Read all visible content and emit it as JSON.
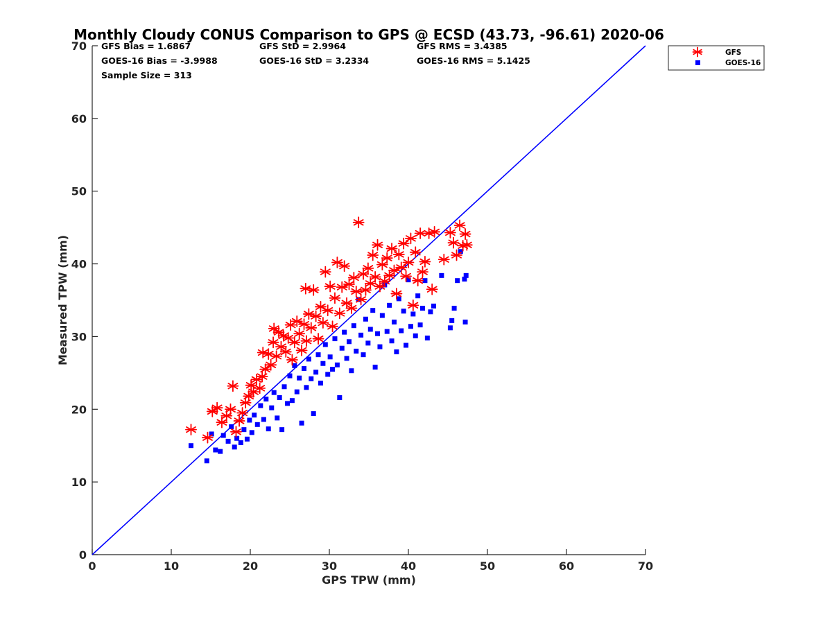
{
  "chart_data": {
    "type": "scatter",
    "title": "Monthly Cloudy CONUS Comparison to GPS @ ECSD (43.73, -96.61) 2020-06",
    "xlabel": "GPS TPW (mm)",
    "ylabel": "Measured TPW (mm)",
    "xlim": [
      0,
      70
    ],
    "ylim": [
      0,
      70
    ],
    "xticks": [
      "0",
      "10",
      "20",
      "30",
      "40",
      "50",
      "60",
      "70"
    ],
    "yticks": [
      "0",
      "10",
      "20",
      "30",
      "40",
      "50",
      "60",
      "70"
    ],
    "legend_position": "top-right-outside",
    "stats": [
      [
        "GFS Bias = 1.6867",
        "GFS StD = 2.9964",
        "GFS RMS = 3.4385"
      ],
      [
        "GOES-16 Bias = -3.9988",
        "GOES-16 StD = 3.2334",
        "GOES-16 RMS = 5.1425"
      ],
      [
        "Sample Size = 313"
      ]
    ],
    "reference_line": {
      "name": "1:1 line",
      "x": [
        0,
        70
      ],
      "y": [
        0,
        70
      ],
      "color": "#0000ff"
    },
    "series": [
      {
        "name": "GFS",
        "marker": "asterisk",
        "color": "#ff0000",
        "points": [
          [
            12.5,
            17.2
          ],
          [
            14.6,
            16.1
          ],
          [
            15.2,
            19.7
          ],
          [
            15.8,
            20.2
          ],
          [
            16.4,
            18.2
          ],
          [
            17.0,
            19.1
          ],
          [
            17.5,
            20.0
          ],
          [
            17.8,
            23.2
          ],
          [
            18.2,
            16.9
          ],
          [
            18.6,
            18.4
          ],
          [
            19.0,
            19.5
          ],
          [
            19.4,
            20.9
          ],
          [
            19.8,
            21.8
          ],
          [
            20.1,
            23.3
          ],
          [
            20.4,
            22.4
          ],
          [
            20.8,
            24.1
          ],
          [
            21.2,
            22.9
          ],
          [
            21.5,
            24.5
          ],
          [
            21.6,
            27.8
          ],
          [
            21.9,
            25.5
          ],
          [
            22.3,
            27.6
          ],
          [
            22.6,
            26.1
          ],
          [
            22.9,
            29.2
          ],
          [
            23.0,
            31.1
          ],
          [
            23.3,
            27.3
          ],
          [
            23.6,
            30.6
          ],
          [
            23.9,
            28.6
          ],
          [
            24.2,
            30.1
          ],
          [
            24.5,
            27.9
          ],
          [
            24.8,
            29.8
          ],
          [
            25.1,
            31.6
          ],
          [
            25.3,
            26.8
          ],
          [
            25.6,
            29.2
          ],
          [
            25.9,
            32.1
          ],
          [
            26.2,
            30.4
          ],
          [
            26.5,
            28.1
          ],
          [
            26.8,
            31.7
          ],
          [
            27.0,
            36.6
          ],
          [
            27.1,
            29.4
          ],
          [
            27.4,
            33.1
          ],
          [
            27.7,
            31.2
          ],
          [
            28.0,
            36.4
          ],
          [
            28.3,
            32.8
          ],
          [
            28.6,
            29.7
          ],
          [
            28.9,
            34.1
          ],
          [
            29.2,
            31.9
          ],
          [
            29.5,
            38.9
          ],
          [
            29.8,
            33.6
          ],
          [
            30.1,
            36.9
          ],
          [
            30.4,
            31.4
          ],
          [
            30.7,
            35.3
          ],
          [
            31.0,
            40.2
          ],
          [
            31.3,
            33.2
          ],
          [
            31.6,
            36.8
          ],
          [
            31.9,
            39.7
          ],
          [
            32.2,
            34.6
          ],
          [
            32.5,
            37.2
          ],
          [
            32.8,
            33.9
          ],
          [
            33.1,
            38.1
          ],
          [
            33.4,
            36.2
          ],
          [
            33.7,
            45.7
          ],
          [
            34.0,
            35.1
          ],
          [
            34.3,
            38.6
          ],
          [
            34.6,
            36.4
          ],
          [
            34.9,
            39.4
          ],
          [
            35.2,
            37.3
          ],
          [
            35.5,
            41.2
          ],
          [
            35.8,
            38.2
          ],
          [
            36.1,
            42.6
          ],
          [
            36.4,
            36.9
          ],
          [
            36.7,
            39.9
          ],
          [
            37.0,
            37.6
          ],
          [
            37.3,
            40.8
          ],
          [
            37.6,
            38.4
          ],
          [
            37.9,
            42.1
          ],
          [
            38.2,
            39.1
          ],
          [
            38.5,
            35.9
          ],
          [
            38.8,
            41.3
          ],
          [
            39.1,
            39.5
          ],
          [
            39.4,
            42.8
          ],
          [
            39.7,
            38.3
          ],
          [
            40.0,
            40.2
          ],
          [
            40.3,
            43.5
          ],
          [
            40.6,
            34.3
          ],
          [
            40.9,
            41.6
          ],
          [
            41.2,
            37.7
          ],
          [
            41.5,
            44.2
          ],
          [
            41.8,
            38.9
          ],
          [
            42.1,
            40.3
          ],
          [
            42.6,
            44.2
          ],
          [
            43.0,
            36.5
          ],
          [
            43.3,
            44.4
          ],
          [
            44.5,
            40.6
          ],
          [
            45.3,
            44.3
          ],
          [
            45.7,
            42.9
          ],
          [
            46.1,
            41.2
          ],
          [
            46.5,
            45.3
          ],
          [
            46.9,
            42.5
          ],
          [
            47.2,
            44.1
          ],
          [
            47.4,
            42.6
          ]
        ]
      },
      {
        "name": "GOES-16",
        "marker": "square",
        "color": "#0000ff",
        "points": [
          [
            12.5,
            15.0
          ],
          [
            14.5,
            12.9
          ],
          [
            15.1,
            16.6
          ],
          [
            15.6,
            14.4
          ],
          [
            16.2,
            14.2
          ],
          [
            16.6,
            16.4
          ],
          [
            17.2,
            15.6
          ],
          [
            17.6,
            17.6
          ],
          [
            18.0,
            14.8
          ],
          [
            18.3,
            16.0
          ],
          [
            18.8,
            15.4
          ],
          [
            19.2,
            17.2
          ],
          [
            19.6,
            15.9
          ],
          [
            19.9,
            18.5
          ],
          [
            20.2,
            16.8
          ],
          [
            20.5,
            19.2
          ],
          [
            20.9,
            17.9
          ],
          [
            21.3,
            20.5
          ],
          [
            21.7,
            18.6
          ],
          [
            22.0,
            21.4
          ],
          [
            22.3,
            17.3
          ],
          [
            22.7,
            20.2
          ],
          [
            23.0,
            22.3
          ],
          [
            23.4,
            18.8
          ],
          [
            23.7,
            21.6
          ],
          [
            24.0,
            17.2
          ],
          [
            24.3,
            23.1
          ],
          [
            24.7,
            20.8
          ],
          [
            25.0,
            24.6
          ],
          [
            25.3,
            21.2
          ],
          [
            25.6,
            26.0
          ],
          [
            25.9,
            22.4
          ],
          [
            26.2,
            24.3
          ],
          [
            26.5,
            18.1
          ],
          [
            26.8,
            25.6
          ],
          [
            27.1,
            23.0
          ],
          [
            27.4,
            26.9
          ],
          [
            27.7,
            24.2
          ],
          [
            28.0,
            19.4
          ],
          [
            28.3,
            25.1
          ],
          [
            28.6,
            27.5
          ],
          [
            28.9,
            23.6
          ],
          [
            29.2,
            26.3
          ],
          [
            29.5,
            28.9
          ],
          [
            29.8,
            24.8
          ],
          [
            30.1,
            27.2
          ],
          [
            30.4,
            25.5
          ],
          [
            30.7,
            29.7
          ],
          [
            31.0,
            26.1
          ],
          [
            31.3,
            21.6
          ],
          [
            31.6,
            28.4
          ],
          [
            31.9,
            30.6
          ],
          [
            32.2,
            27.0
          ],
          [
            32.5,
            29.3
          ],
          [
            32.8,
            25.3
          ],
          [
            33.1,
            31.5
          ],
          [
            33.4,
            28.0
          ],
          [
            33.7,
            35.1
          ],
          [
            34.0,
            30.2
          ],
          [
            34.3,
            27.5
          ],
          [
            34.6,
            32.4
          ],
          [
            34.9,
            29.1
          ],
          [
            35.2,
            31.0
          ],
          [
            35.5,
            33.6
          ],
          [
            35.8,
            25.8
          ],
          [
            36.1,
            30.4
          ],
          [
            36.4,
            28.6
          ],
          [
            36.7,
            32.9
          ],
          [
            37.0,
            37.1
          ],
          [
            37.3,
            30.7
          ],
          [
            37.6,
            34.3
          ],
          [
            37.9,
            29.4
          ],
          [
            38.2,
            32.0
          ],
          [
            38.5,
            27.9
          ],
          [
            38.8,
            35.2
          ],
          [
            39.1,
            30.8
          ],
          [
            39.4,
            33.5
          ],
          [
            39.7,
            28.8
          ],
          [
            40.0,
            37.8
          ],
          [
            40.3,
            31.4
          ],
          [
            40.6,
            33.1
          ],
          [
            40.9,
            30.1
          ],
          [
            41.2,
            35.6
          ],
          [
            41.5,
            31.6
          ],
          [
            41.8,
            33.9
          ],
          [
            42.1,
            37.7
          ],
          [
            42.4,
            29.8
          ],
          [
            42.8,
            33.4
          ],
          [
            43.2,
            34.2
          ],
          [
            44.2,
            38.4
          ],
          [
            45.3,
            31.2
          ],
          [
            45.5,
            32.2
          ],
          [
            45.8,
            33.9
          ],
          [
            46.2,
            37.7
          ],
          [
            46.6,
            41.7
          ],
          [
            47.1,
            37.9
          ],
          [
            47.3,
            38.4
          ],
          [
            47.2,
            32.0
          ]
        ]
      }
    ]
  }
}
